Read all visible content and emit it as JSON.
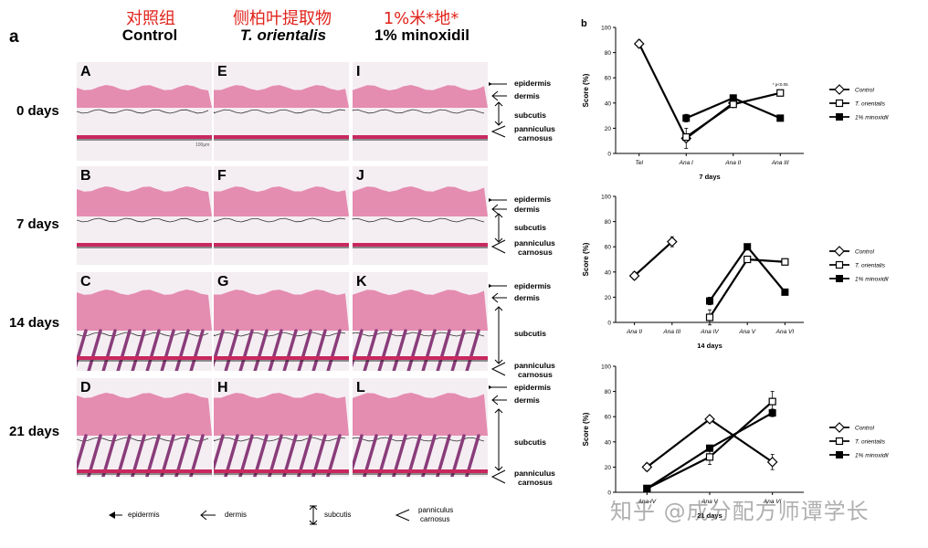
{
  "figure_a": {
    "label": "a",
    "columns": [
      {
        "cn": "对照组",
        "title": "Control",
        "italic": false
      },
      {
        "cn": "侧柏叶提取物",
        "title": "T. orientalis",
        "italic": true
      },
      {
        "cn": "1%米*地*",
        "title": "1% minoxidil",
        "italic": false
      }
    ],
    "rows": [
      "0 days",
      "7 days",
      "14 days",
      "21 days"
    ],
    "panels": [
      [
        "A",
        "E",
        "I"
      ],
      [
        "B",
        "F",
        "J"
      ],
      [
        "C",
        "G",
        "K"
      ],
      [
        "D",
        "H",
        "L"
      ]
    ],
    "scale_text": "100μm",
    "annotations": {
      "epidermis": "epidermis",
      "dermis": "dermis",
      "subcutis": "subcutis",
      "panniculus": "panniculus",
      "carnosus": "carnosus"
    },
    "legend": {
      "epidermis": "epidermis",
      "dermis": "dermis",
      "subcutis": "subcutis",
      "panniculus": "panniculus",
      "carnosus": "carnosus"
    }
  },
  "figure_b": {
    "label": "b"
  },
  "watermark": "知乎 @成分配方师谭学长",
  "chart_data": [
    {
      "type": "line",
      "xlabel": "7 days",
      "ylabel": "Score (%)",
      "categories": [
        "Tel",
        "Ana I",
        "Ana II",
        "Ana III"
      ],
      "ylim": [
        0,
        100
      ],
      "yticks": [
        0,
        20,
        40,
        60,
        80,
        100
      ],
      "annotation": "* p<0.05",
      "series": [
        {
          "name": "Control",
          "values": [
            87,
            12,
            40,
            null
          ],
          "err": [
            3,
            8,
            0,
            0
          ]
        },
        {
          "name": "T. orientalis",
          "values": [
            null,
            13,
            39,
            48
          ],
          "err": [
            0,
            0,
            2,
            0
          ]
        },
        {
          "name": "1% minoxidil",
          "values": [
            null,
            28,
            44,
            28
          ],
          "err": [
            0,
            3,
            2,
            0
          ]
        }
      ],
      "legend": [
        "Control",
        "T. orientalis",
        "1% minoxidil"
      ]
    },
    {
      "type": "line",
      "xlabel": "14 days",
      "ylabel": "Score (%)",
      "categories": [
        "Ana II",
        "Ana III",
        "Ana IV",
        "Ana V",
        "Ana VI"
      ],
      "ylim": [
        0,
        100
      ],
      "yticks": [
        0,
        20,
        40,
        60,
        80,
        100
      ],
      "series": [
        {
          "name": "Control",
          "values": [
            37,
            64,
            null,
            null,
            null
          ],
          "err": [
            3,
            4,
            0,
            0,
            0
          ]
        },
        {
          "name": "T. orientalis",
          "values": [
            null,
            null,
            4,
            50,
            48
          ],
          "err": [
            0,
            0,
            6,
            0,
            0
          ]
        },
        {
          "name": "1% minoxidil",
          "values": [
            null,
            null,
            17,
            60,
            24
          ],
          "err": [
            0,
            0,
            3,
            0,
            0
          ]
        }
      ],
      "legend": [
        "Control",
        "T. orientalis",
        "1% minoxidil"
      ]
    },
    {
      "type": "line",
      "xlabel": "21 days",
      "ylabel": "Score (%)",
      "categories": [
        "Ana IV",
        "Ana V",
        "Ana VI"
      ],
      "ylim": [
        0,
        100
      ],
      "yticks": [
        0,
        20,
        40,
        60,
        80,
        100
      ],
      "series": [
        {
          "name": "Control",
          "values": [
            20,
            58,
            24
          ],
          "err": [
            3,
            0,
            6
          ]
        },
        {
          "name": "T. orientalis",
          "values": [
            3,
            28,
            72
          ],
          "err": [
            0,
            6,
            8
          ]
        },
        {
          "name": "1% minoxidil",
          "values": [
            3,
            35,
            63
          ],
          "err": [
            0,
            0,
            3
          ]
        }
      ],
      "legend": [
        "Control",
        "T. orientalis",
        "1% minoxidil"
      ]
    }
  ]
}
